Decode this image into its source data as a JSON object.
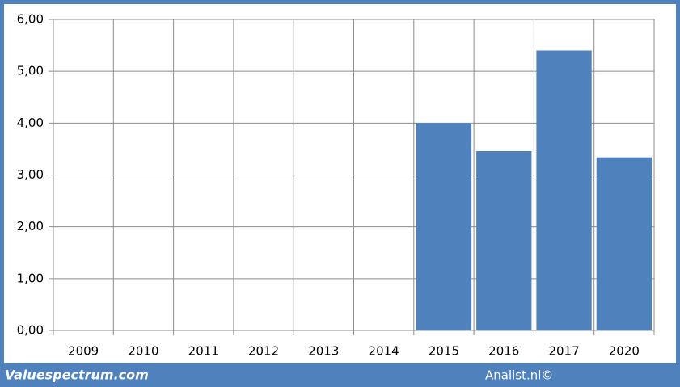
{
  "chart_data": {
    "type": "bar",
    "categories": [
      "2009",
      "2010",
      "2011",
      "2012",
      "2013",
      "2014",
      "2015",
      "2016",
      "2017",
      "2020"
    ],
    "values": [
      null,
      null,
      null,
      null,
      null,
      null,
      4.0,
      3.46,
      5.4,
      3.34
    ],
    "color": "#4f81bd",
    "ylim": [
      0,
      6
    ],
    "yticks": [
      {
        "value": 0,
        "label": "0,00"
      },
      {
        "value": 1,
        "label": "1,00"
      },
      {
        "value": 2,
        "label": "2,00"
      },
      {
        "value": 3,
        "label": "3,00"
      },
      {
        "value": 4,
        "label": "4,00"
      },
      {
        "value": 5,
        "label": "5,00"
      },
      {
        "value": 6,
        "label": "6,00"
      }
    ],
    "grid": true
  },
  "footer": {
    "left": "Valuespectrum.com",
    "right": "Analist.nl©"
  }
}
